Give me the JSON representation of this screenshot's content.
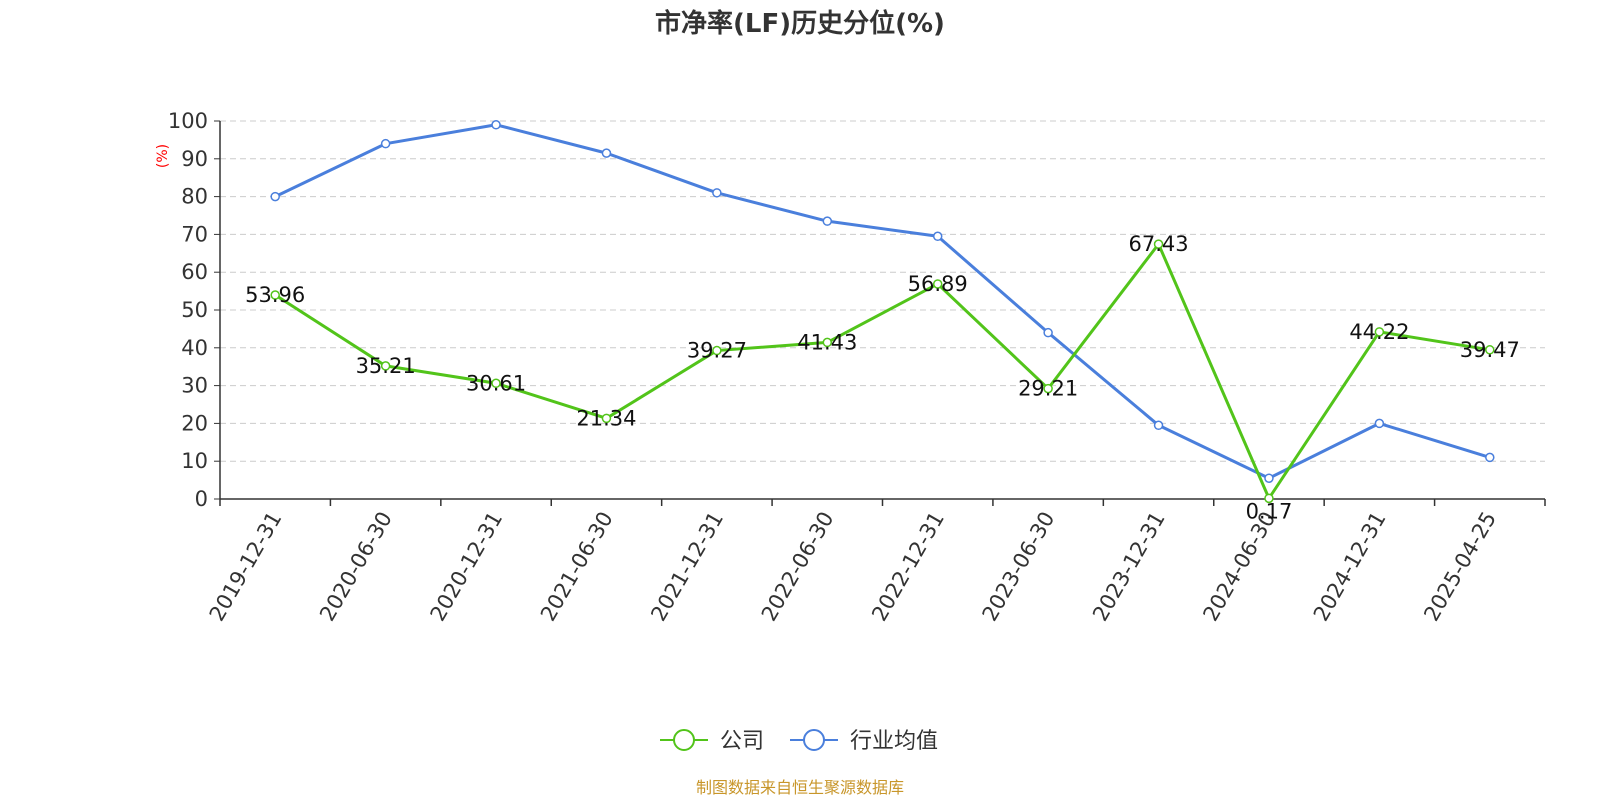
{
  "title": "市净率(LF)历史分位(%)",
  "footer": "制图数据来自恒生聚源数据库",
  "colors": {
    "company": "#52c41a",
    "industry": "#4a7fdc",
    "unit_label": "#ff0000",
    "footer": "#c8962a",
    "grid": "#cccccc",
    "axis": "#333333"
  },
  "chart_data": {
    "type": "line",
    "title": "市净率(LF)历史分位(%)",
    "ylabel": "(%)",
    "ylim": [
      0,
      100
    ],
    "yticks": [
      "0",
      "10",
      "20",
      "30",
      "40",
      "50",
      "60",
      "70",
      "80",
      "90",
      "100"
    ],
    "grid": true,
    "legend_position": "bottom-center",
    "categories": [
      "2019-12-31",
      "2020-06-30",
      "2020-12-31",
      "2021-06-30",
      "2021-12-31",
      "2022-06-30",
      "2022-12-31",
      "2023-06-30",
      "2023-12-31",
      "2024-06-30",
      "2024-12-31",
      "2025-04-25"
    ],
    "series": [
      {
        "name": "公司",
        "color": "#52c41a",
        "values": [
          53.96,
          35.21,
          30.61,
          21.34,
          39.27,
          41.43,
          56.89,
          29.21,
          67.43,
          0.17,
          44.22,
          39.47
        ],
        "labels": [
          "53.96",
          "35.21",
          "30.61",
          "21.34",
          "39.27",
          "41.43",
          "56.89",
          "29.21",
          "67.43",
          "0.17",
          "44.22",
          "39.47"
        ],
        "show_labels": true
      },
      {
        "name": "行业均值",
        "color": "#4a7fdc",
        "values": [
          80,
          94,
          99,
          91.5,
          81,
          73.5,
          69.5,
          44,
          19.5,
          5.5,
          20,
          11
        ],
        "show_labels": false
      }
    ]
  }
}
